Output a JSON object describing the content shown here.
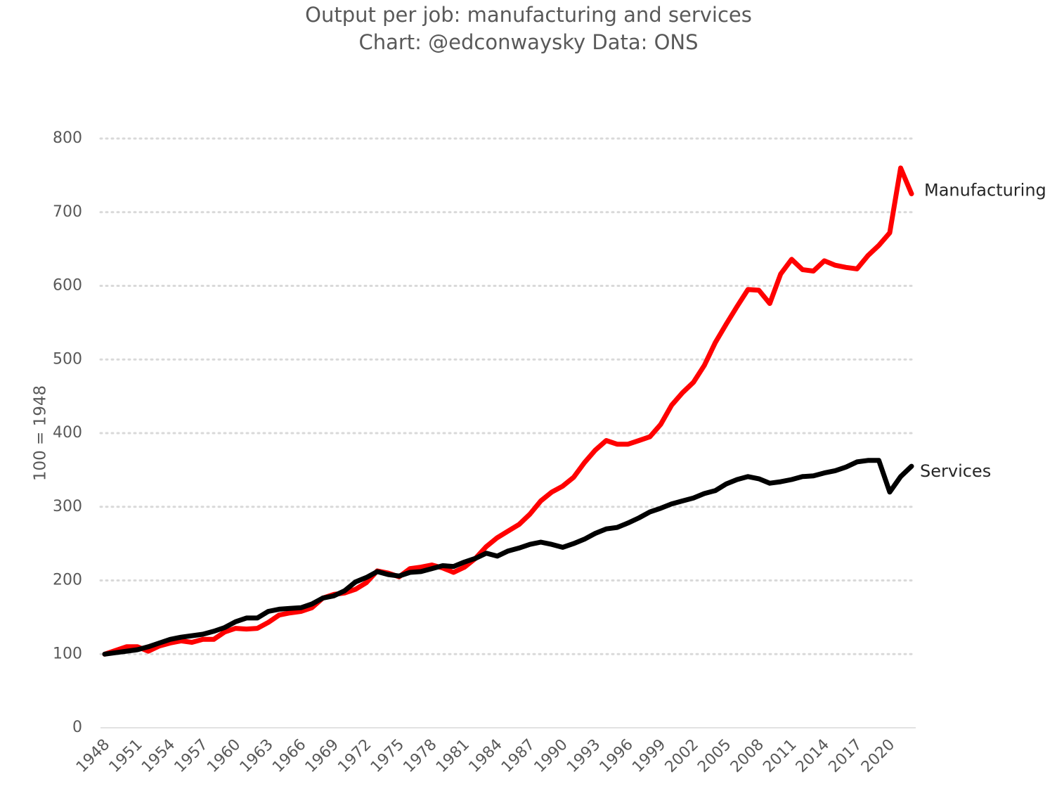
{
  "chart_data": {
    "type": "line",
    "title": "Output per job: manufacturing and services",
    "subtitle": "Chart: @edconwaysky Data: ONS",
    "ylabel": "100 = 1948",
    "ylim": [
      0,
      800
    ],
    "yticks": [
      0,
      100,
      200,
      300,
      400,
      500,
      600,
      700,
      800
    ],
    "xlim": [
      1948,
      2022
    ],
    "xticks": [
      1948,
      1951,
      1954,
      1957,
      1960,
      1963,
      1966,
      1969,
      1972,
      1975,
      1978,
      1981,
      1984,
      1987,
      1990,
      1993,
      1996,
      1999,
      2002,
      2005,
      2008,
      2011,
      2014,
      2017,
      2020
    ],
    "grid": "horizontal dotted",
    "legend": "direct labels at line ends",
    "x": [
      1948,
      1949,
      1950,
      1951,
      1952,
      1953,
      1954,
      1955,
      1956,
      1957,
      1958,
      1959,
      1960,
      1961,
      1962,
      1963,
      1964,
      1965,
      1966,
      1967,
      1968,
      1969,
      1970,
      1971,
      1972,
      1973,
      1974,
      1975,
      1976,
      1977,
      1978,
      1979,
      1980,
      1981,
      1982,
      1983,
      1984,
      1985,
      1986,
      1987,
      1988,
      1989,
      1990,
      1991,
      1992,
      1993,
      1994,
      1995,
      1996,
      1997,
      1998,
      1999,
      2000,
      2001,
      2002,
      2003,
      2004,
      2005,
      2006,
      2007,
      2008,
      2009,
      2010,
      2011,
      2012,
      2013,
      2014,
      2015,
      2016,
      2017,
      2018,
      2019,
      2020,
      2021,
      2022
    ],
    "series": [
      {
        "name": "Manufacturing",
        "color": "#ff0000",
        "values": [
          100,
          105,
          110,
          110,
          104,
          111,
          115,
          118,
          116,
          120,
          120,
          130,
          135,
          134,
          135,
          143,
          153,
          156,
          158,
          163,
          176,
          181,
          183,
          188,
          197,
          213,
          210,
          205,
          216,
          218,
          221,
          217,
          211,
          218,
          230,
          246,
          258,
          267,
          276,
          290,
          308,
          320,
          328,
          340,
          360,
          377,
          390,
          385,
          385,
          390,
          395,
          412,
          438,
          455,
          469,
          492,
          523,
          548,
          572,
          595,
          594,
          576,
          616,
          636,
          622,
          620,
          634,
          628,
          625,
          623,
          641,
          655,
          672,
          760,
          725
        ]
      },
      {
        "name": "Services",
        "color": "#000000",
        "values": [
          100,
          102,
          104,
          106,
          110,
          115,
          120,
          123,
          125,
          127,
          131,
          136,
          144,
          149,
          149,
          158,
          161,
          162,
          163,
          168,
          176,
          179,
          186,
          198,
          204,
          212,
          208,
          206,
          211,
          212,
          216,
          220,
          219,
          225,
          230,
          237,
          233,
          240,
          244,
          249,
          252,
          249,
          245,
          250,
          256,
          264,
          270,
          272,
          278,
          285,
          293,
          298,
          304,
          308,
          312,
          318,
          322,
          331,
          337,
          341,
          338,
          332,
          334,
          337,
          341,
          342,
          346,
          349,
          354,
          361,
          363,
          363,
          320,
          341,
          355
        ]
      }
    ]
  }
}
